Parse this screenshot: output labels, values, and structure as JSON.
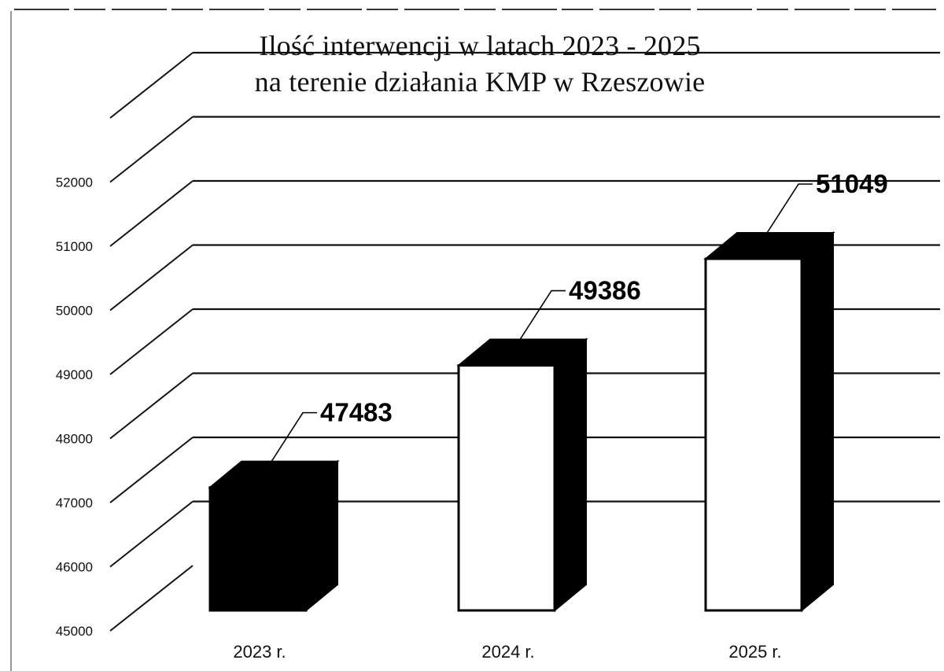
{
  "chart_data": {
    "type": "bar",
    "title_lines": [
      "Ilość interwencji w latach 2023 - 2025",
      "na terenie działania KMP w Rzeszowie"
    ],
    "categories": [
      "2023 r.",
      "2024 r.",
      "2025 r."
    ],
    "values": [
      47483,
      49386,
      51049
    ],
    "data_labels": [
      "47483",
      "49386",
      "51049"
    ],
    "y_ticks": [
      "45000",
      "46000",
      "47000",
      "48000",
      "49000",
      "50000",
      "51000",
      "52000"
    ],
    "ylim": [
      45000,
      53000
    ],
    "grid": true,
    "style": "3d",
    "bar_fills": [
      "#000000",
      "#ffffff",
      "#ffffff"
    ]
  }
}
